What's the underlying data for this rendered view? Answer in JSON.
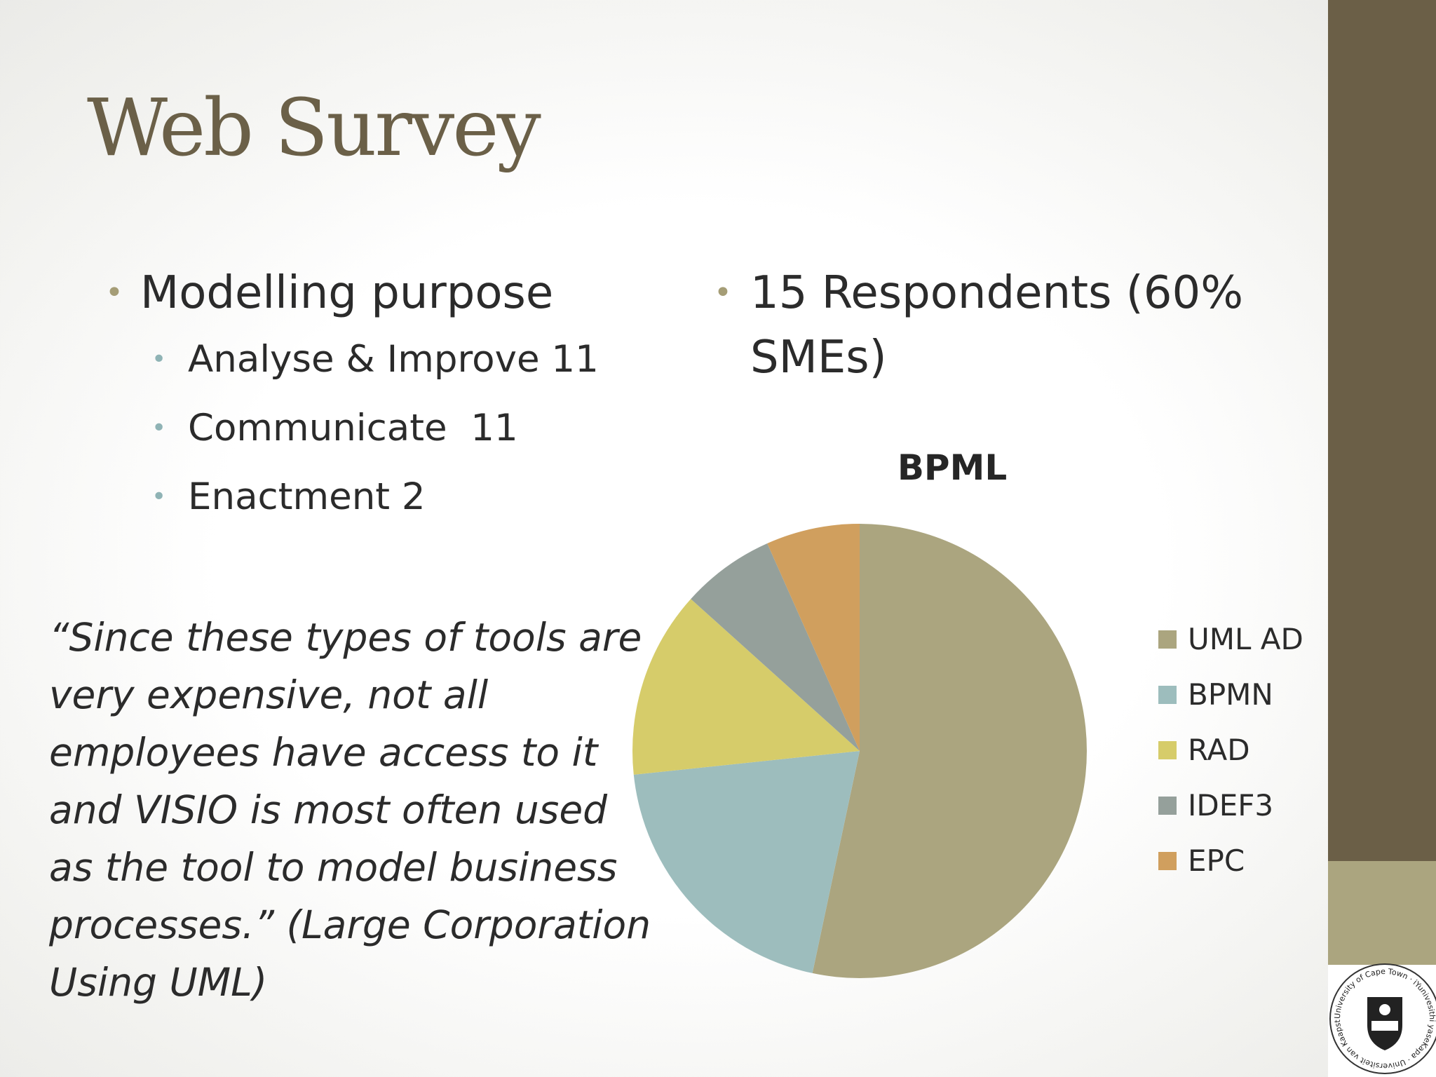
{
  "slide": {
    "title": "Web Survey",
    "bullet_main": "Modelling purpose",
    "sub_bullets": [
      "Analyse & Improve 11",
      "Communicate  11",
      "Enactment 2"
    ],
    "respondents": "15 Respondents (60% SMEs)",
    "quote": "“Since these types of tools are very expensive, not all employees have access to it and VISIO is most often used as the tool to model business processes.” (Large Corporation Using UML)",
    "logo_text": "University of Cape Town · iYunivesithi yaseKapa · Universiteit van Kaapstad ·",
    "bullet_glyph": "•"
  },
  "colors": {
    "accent_dark": "#6b5f47",
    "accent_light": "#aba57f",
    "title": "#6b6048"
  },
  "chart_data": {
    "type": "pie",
    "title": "BPML",
    "legend_position": "right",
    "categories": [
      "UML AD",
      "BPMN",
      "RAD",
      "IDEF3",
      "EPC"
    ],
    "values": [
      8,
      3,
      2,
      1,
      1
    ],
    "colors": [
      "#aba57f",
      "#9dbdbd",
      "#d6cc6a",
      "#95a09b",
      "#d09f5e"
    ]
  }
}
